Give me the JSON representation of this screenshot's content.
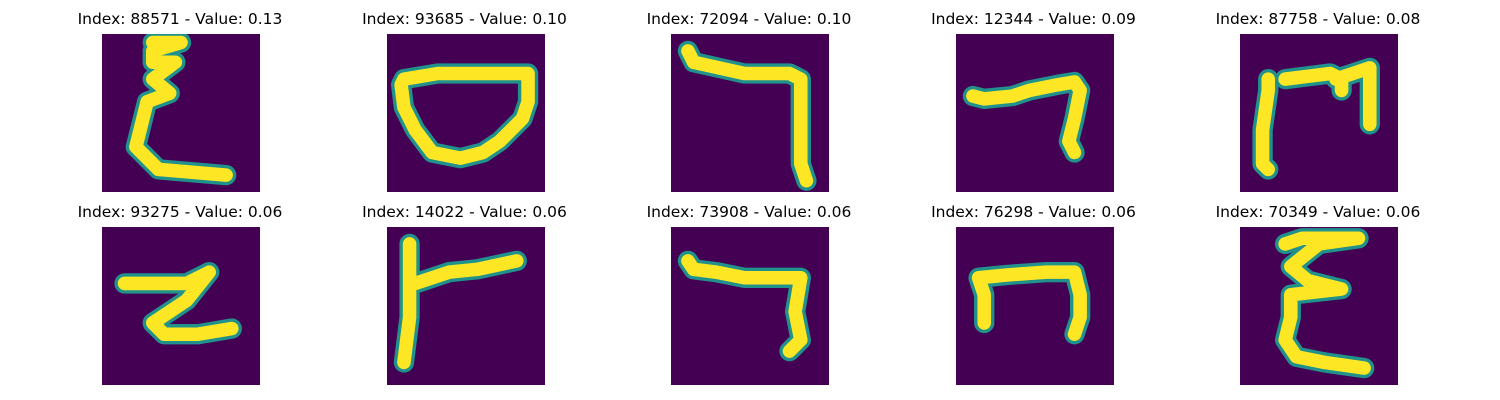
{
  "colors": {
    "background": "#440154",
    "mid": "#21918c",
    "stroke": "#fde725"
  },
  "panels": [
    {
      "index": "88571",
      "value": "0.13",
      "glyph": "epsilon-shape"
    },
    {
      "index": "93685",
      "value": "0.10",
      "glyph": "bowl-shape"
    },
    {
      "index": "72094",
      "value": "0.10",
      "glyph": "hook-shape"
    },
    {
      "index": "12344",
      "value": "0.09",
      "glyph": "hook-shape"
    },
    {
      "index": "87758",
      "value": "0.08",
      "glyph": "arch-shape"
    },
    {
      "index": "93275",
      "value": "0.06",
      "glyph": "z-shape"
    },
    {
      "index": "14022",
      "value": "0.06",
      "glyph": "r-shape"
    },
    {
      "index": "73908",
      "value": "0.06",
      "glyph": "hook-shape"
    },
    {
      "index": "76298",
      "value": "0.06",
      "glyph": "n-shape"
    },
    {
      "index": "70349",
      "value": "0.06",
      "glyph": "epsilon-shape"
    }
  ]
}
